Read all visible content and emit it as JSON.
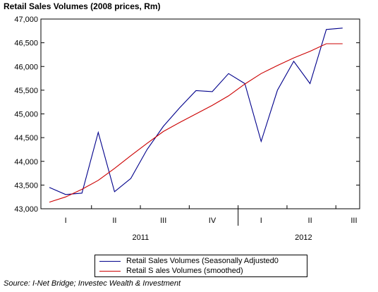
{
  "chart_data": {
    "type": "line",
    "title": "Retail Sales Volumes (2008 prices, Rm)",
    "ylim": [
      43000,
      47000
    ],
    "y_ticks": [
      "43,000",
      "43,500",
      "44,000",
      "44,500",
      "45,000",
      "45,500",
      "46,000",
      "46,500",
      "47,000"
    ],
    "y_tick_values": [
      43000,
      43500,
      44000,
      44500,
      45000,
      45500,
      46000,
      46500,
      47000
    ],
    "x_quarter_labels": [
      "I",
      "II",
      "III",
      "IV",
      "I",
      "II",
      "III"
    ],
    "x_year_labels": [
      "2011",
      "2012"
    ],
    "grid": false,
    "legend_position": "bottom",
    "series": [
      {
        "name": "Retail Sales Volumes (Seasonally Adjusted0",
        "color": "#00008b",
        "values": [
          43450,
          43300,
          43330,
          44610,
          43360,
          43640,
          44250,
          44740,
          45130,
          45490,
          45470,
          45850,
          45640,
          44420,
          45500,
          46110,
          45640,
          46780,
          46810
        ]
      },
      {
        "name": "Retail S ales Volumes (smoothed)",
        "color": "#cc0000",
        "values": [
          43140,
          43250,
          43410,
          43600,
          43850,
          44120,
          44380,
          44630,
          44820,
          45000,
          45180,
          45380,
          45630,
          45850,
          46020,
          46180,
          46320,
          46480,
          46480
        ]
      }
    ]
  },
  "source": "Source: I-Net Bridge; Investec Wealth & Investment"
}
